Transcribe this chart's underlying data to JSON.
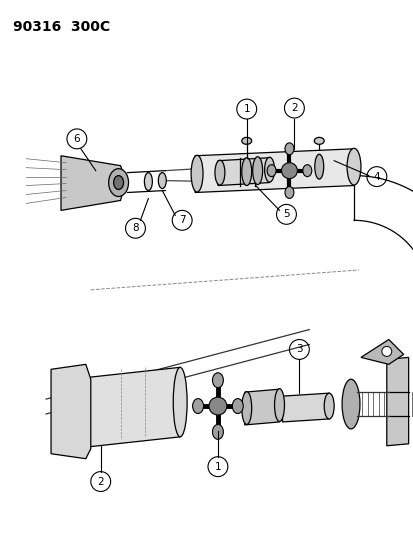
{
  "title": "90316  300C",
  "bg_color": "#ffffff",
  "line_color": "#000000",
  "title_fontsize": 10,
  "fig_width": 4.14,
  "fig_height": 5.33,
  "dpi": 100
}
